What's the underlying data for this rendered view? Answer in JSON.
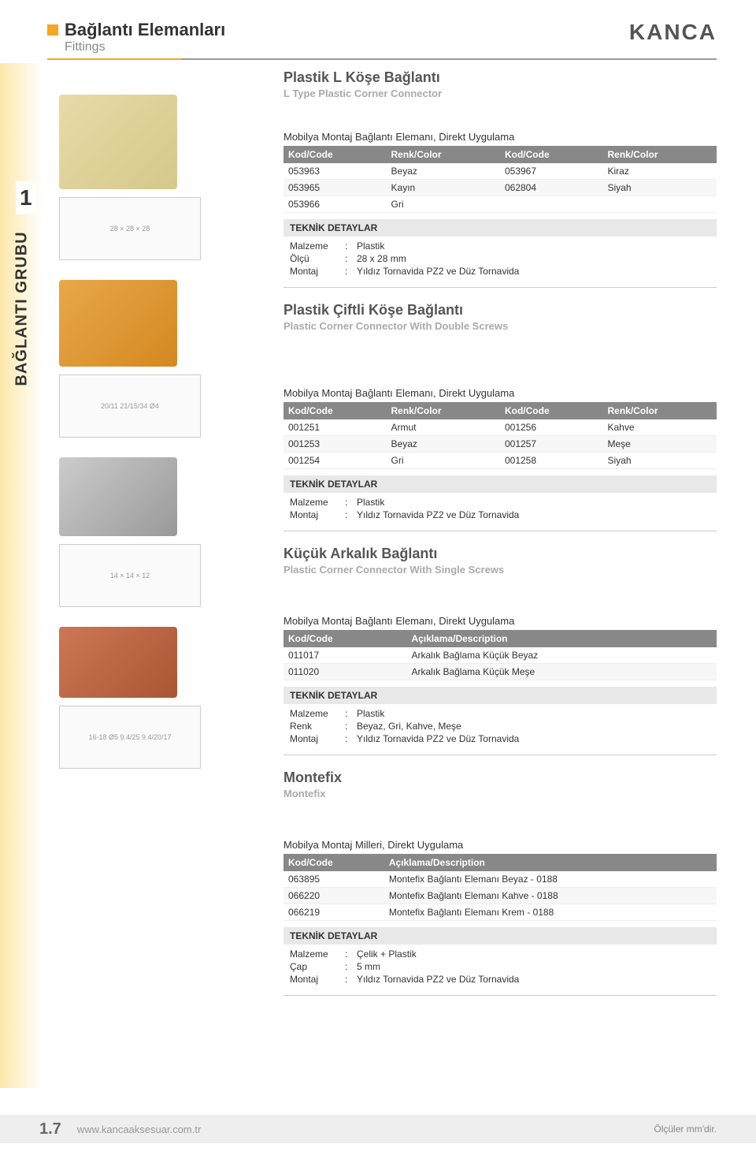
{
  "header": {
    "title_tr": "Bağlantı Elemanları",
    "title_en": "Fittings",
    "logo": "KANCA"
  },
  "sidebar": {
    "label": "BAĞLANTI GRUBU",
    "num": "1"
  },
  "sections": [
    {
      "title_tr": "Plastik L Köşe Bağlantı",
      "title_en": "L Type Plastic Corner Connector",
      "caption": "Mobilya Montaj Bağlantı Elemanı, Direkt Uygulama",
      "columns": [
        "Kod/Code",
        "Renk/Color",
        "Kod/Code",
        "Renk/Color"
      ],
      "rows": [
        [
          "053963",
          "Beyaz",
          "053967",
          "Kiraz"
        ],
        [
          "053965",
          "Kayın",
          "062804",
          "Siyah"
        ],
        [
          "053966",
          "Gri",
          "",
          ""
        ]
      ],
      "tech_header": "TEKNİK DETAYLAR",
      "tech": [
        [
          "Malzeme",
          "Plastik"
        ],
        [
          "Ölçü",
          "28 x 28 mm"
        ],
        [
          "Montaj",
          "Yıldız Tornavida PZ2 ve Düz Tornavida"
        ]
      ],
      "diagram_dims": [
        "28",
        "28",
        "28"
      ]
    },
    {
      "title_tr": "Plastik Çiftli Köşe Bağlantı",
      "title_en": "Plastic Corner Connector With Double Screws",
      "caption": "Mobilya Montaj Bağlantı Elemanı, Direkt Uygulama",
      "columns": [
        "Kod/Code",
        "Renk/Color",
        "Kod/Code",
        "Renk/Color"
      ],
      "rows": [
        [
          "001251",
          "Armut",
          "001256",
          "Kahve"
        ],
        [
          "001253",
          "Beyaz",
          "001257",
          "Meşe"
        ],
        [
          "001254",
          "Gri",
          "001258",
          "Siyah"
        ]
      ],
      "tech_header": "TEKNİK DETAYLAR",
      "tech": [
        [
          "Malzeme",
          "Plastik"
        ],
        [
          "Montaj",
          "Yıldız Tornavida PZ2 ve Düz Tornavida"
        ]
      ],
      "diagram_dims": [
        "20",
        "11",
        "21",
        "15",
        "34",
        "Ø4"
      ]
    },
    {
      "title_tr": "Küçük Arkalık Bağlantı",
      "title_en": "Plastic Corner Connector With Single Screws",
      "caption": "Mobilya Montaj Bağlantı Elemanı, Direkt Uygulama",
      "columns": [
        "Kod/Code",
        "Açıklama/Description"
      ],
      "rows": [
        [
          "011017",
          "Arkalık Bağlama Küçük Beyaz"
        ],
        [
          "011020",
          "Arkalık Bağlama Küçük Meşe"
        ]
      ],
      "tech_header": "TEKNİK DETAYLAR",
      "tech": [
        [
          "Malzeme",
          "Plastik"
        ],
        [
          "Renk",
          "Beyaz, Gri, Kahve, Meşe"
        ],
        [
          "Montaj",
          "Yıldız Tornavida PZ2 ve Düz Tornavida"
        ]
      ],
      "diagram_dims": [
        "14",
        "14",
        "12"
      ]
    },
    {
      "title_tr": "Montefix",
      "title_en": "Montefix",
      "caption": "Mobilya Montaj Milleri, Direkt Uygulama",
      "columns": [
        "Kod/Code",
        "Açıklama/Description"
      ],
      "rows": [
        [
          "063895",
          "Montefix Bağlantı Elemanı Beyaz - 0188"
        ],
        [
          "066220",
          "Montefix Bağlantı Elemanı Kahve - 0188"
        ],
        [
          "066219",
          "Montefix Bağlantı Elemanı Krem - 0188"
        ]
      ],
      "tech_header": "TEKNİK DETAYLAR",
      "tech": [
        [
          "Malzeme",
          "Çelik + Plastik"
        ],
        [
          "Çap",
          "5 mm"
        ],
        [
          "Montaj",
          "Yıldız Tornavida PZ2 ve Düz Tornavida"
        ]
      ],
      "diagram_dims": [
        "16-18",
        "Ø5",
        "16-18",
        "9.4",
        "25",
        "9.4",
        "20",
        "17"
      ]
    }
  ],
  "footer": {
    "page": "1.7",
    "url": "www.kancaaksesuar.com.tr",
    "note": "Ölçüler mm'dir."
  },
  "colors": {
    "accent": "#f5a623",
    "header_bg": "#888888",
    "text": "#333333",
    "muted": "#aaaaaa"
  }
}
